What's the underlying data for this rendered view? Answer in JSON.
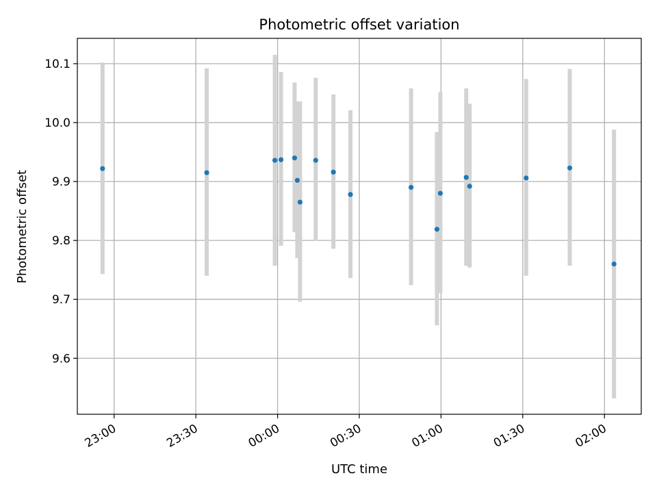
{
  "chart_data": {
    "type": "scatter",
    "title": "Photometric offset variation",
    "xlabel": "UTC time",
    "ylabel": "Photometric offset",
    "grid": true,
    "xlim": [
      "22:46:30",
      "02:13:30"
    ],
    "ylim": [
      9.505,
      10.143
    ],
    "xticks": [
      "23:00",
      "23:30",
      "00:00",
      "00:30",
      "01:00",
      "01:30",
      "02:00"
    ],
    "yticks": [
      "9.6",
      "9.7",
      "9.8",
      "9.9",
      "10.0",
      "10.1"
    ],
    "colors": {
      "point": "#1f77b4",
      "errorbar": "#d3d3d3",
      "grid": "#b0b0b0"
    },
    "series": [
      {
        "points": [
          {
            "x": "22:55:45",
            "y": 9.922,
            "ylow": 9.743,
            "yhigh": 10.102
          },
          {
            "x": "23:34:00",
            "y": 9.915,
            "ylow": 9.74,
            "yhigh": 10.092
          },
          {
            "x": "23:59:00",
            "y": 9.936,
            "ylow": 9.757,
            "yhigh": 10.115
          },
          {
            "x": "00:01:15",
            "y": 9.937,
            "ylow": 9.791,
            "yhigh": 10.086
          },
          {
            "x": "00:06:15",
            "y": 9.94,
            "ylow": 9.814,
            "yhigh": 10.068
          },
          {
            "x": "00:07:15",
            "y": 9.902,
            "ylow": 9.77,
            "yhigh": 10.036
          },
          {
            "x": "00:08:15",
            "y": 9.865,
            "ylow": 9.696,
            "yhigh": 10.036
          },
          {
            "x": "00:14:00",
            "y": 9.936,
            "ylow": 9.799,
            "yhigh": 10.076
          },
          {
            "x": "00:20:30",
            "y": 9.916,
            "ylow": 9.786,
            "yhigh": 10.048
          },
          {
            "x": "00:26:45",
            "y": 9.878,
            "ylow": 9.736,
            "yhigh": 10.021
          },
          {
            "x": "00:49:00",
            "y": 9.89,
            "ylow": 9.724,
            "yhigh": 10.058
          },
          {
            "x": "00:58:30",
            "y": 9.819,
            "ylow": 9.656,
            "yhigh": 9.984
          },
          {
            "x": "00:59:45",
            "y": 9.88,
            "ylow": 9.711,
            "yhigh": 10.052
          },
          {
            "x": "01:09:15",
            "y": 9.907,
            "ylow": 9.757,
            "yhigh": 10.058
          },
          {
            "x": "01:10:30",
            "y": 9.892,
            "ylow": 9.754,
            "yhigh": 10.032
          },
          {
            "x": "01:31:15",
            "y": 9.906,
            "ylow": 9.74,
            "yhigh": 10.074
          },
          {
            "x": "01:47:15",
            "y": 9.923,
            "ylow": 9.757,
            "yhigh": 10.091
          },
          {
            "x": "02:03:30",
            "y": 9.76,
            "ylow": 9.532,
            "yhigh": 9.988
          }
        ]
      }
    ]
  }
}
